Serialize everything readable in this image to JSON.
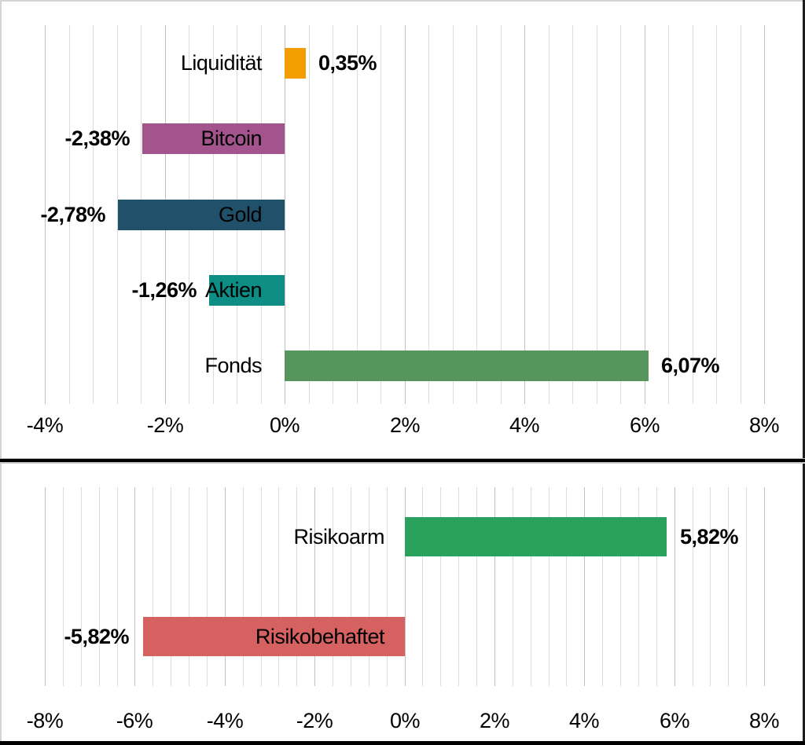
{
  "figure": {
    "background": "#FFFFFF",
    "grid_minor_color": "#DCDCDC",
    "grid_major_color": "#C0C0C0",
    "text_color": "#000000"
  },
  "chart_data": [
    {
      "type": "bar",
      "orientation": "horizontal",
      "title": "",
      "categories": [
        "Liquidität",
        "Bitcoin",
        "Gold",
        "Aktien",
        "Fonds"
      ],
      "values": [
        0.35,
        -2.38,
        -2.78,
        -1.26,
        6.07
      ],
      "value_labels": [
        "0,35%",
        "-2,38%",
        "-2,78%",
        "-1,26%",
        "6,07%"
      ],
      "bar_colors": [
        "#F49D02",
        "#A3548C",
        "#21506B",
        "#0E8D84",
        "#56955C"
      ],
      "xlim": [
        -4,
        8
      ],
      "major_unit": 2,
      "minor_unit": 0.4,
      "major_ticks": [
        -4,
        -2,
        0,
        2,
        4,
        6,
        8
      ],
      "tick_labels": [
        "-4%",
        "-2%",
        "0%",
        "2%",
        "4%",
        "6%",
        "8%"
      ],
      "grid": true,
      "legend": "none"
    },
    {
      "type": "bar",
      "orientation": "horizontal",
      "title": "",
      "categories": [
        "Risikoarm",
        "Risikobehaftet"
      ],
      "values": [
        5.82,
        -5.82
      ],
      "value_labels": [
        "5,82%",
        "-5,82%"
      ],
      "bar_colors": [
        "#2AA15C",
        "#D66161"
      ],
      "xlim": [
        -8,
        8
      ],
      "major_unit": 2,
      "minor_unit": 0.4,
      "major_ticks": [
        -8,
        -6,
        -4,
        -2,
        0,
        2,
        4,
        6,
        8
      ],
      "tick_labels": [
        "-8%",
        "-6%",
        "-4%",
        "-2%",
        "0%",
        "2%",
        "4%",
        "6%",
        "8%"
      ],
      "grid": true,
      "legend": "none"
    }
  ]
}
